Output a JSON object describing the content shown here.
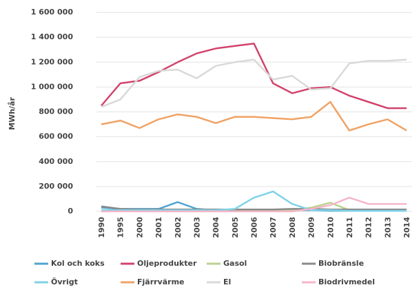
{
  "chart_data": {
    "type": "line",
    "y_label": "MWh/år",
    "categories": [
      "1990",
      "1995",
      "2000",
      "2001",
      "2002",
      "2003",
      "2004",
      "2005",
      "2006",
      "2007",
      "2008",
      "2009",
      "2010",
      "2011",
      "2012",
      "2013",
      "2014"
    ],
    "ylim": [
      0,
      1600000
    ],
    "yticks": [
      0,
      {
        "value": 200000,
        "label": "200 000"
      },
      {
        "value": 400000,
        "label": "400 000"
      },
      {
        "value": 600000,
        "label": "600 000"
      },
      {
        "value": 800000,
        "label": "800 000"
      },
      {
        "value": 1000000,
        "label": "1 000 000"
      },
      {
        "value": 1200000,
        "label": "1 200 000"
      },
      {
        "value": 1400000,
        "label": "1 400 000"
      },
      {
        "value": 1600000,
        "label": "1 600 000"
      }
    ],
    "grid": true,
    "series": [
      {
        "name": "Kol och koks",
        "color": "#4fa3d1",
        "values": [
          30000,
          20000,
          20000,
          20000,
          75000,
          20000,
          10000,
          15000,
          15000,
          15000,
          10000,
          10000,
          5000,
          5000,
          5000,
          5000,
          5000
        ]
      },
      {
        "name": "Oljeprodukter",
        "color": "#d2436b",
        "values": [
          850000,
          1030000,
          1050000,
          1120000,
          1200000,
          1270000,
          1310000,
          1330000,
          1350000,
          1030000,
          950000,
          990000,
          1000000,
          930000,
          880000,
          830000,
          830000
        ]
      },
      {
        "name": "Gasol",
        "color": "#b9d28c",
        "values": [
          10000,
          10000,
          10000,
          10000,
          10000,
          10000,
          10000,
          10000,
          10000,
          10000,
          10000,
          30000,
          70000,
          10000,
          10000,
          10000,
          10000
        ]
      },
      {
        "name": "Biobränsle",
        "color": "#8a8a8a",
        "values": [
          40000,
          20000,
          15000,
          15000,
          15000,
          15000,
          15000,
          15000,
          15000,
          15000,
          20000,
          20000,
          15000,
          15000,
          15000,
          15000,
          15000
        ]
      },
      {
        "name": "Övrigt",
        "color": "#7fd2e6",
        "values": [
          10000,
          10000,
          10000,
          10000,
          10000,
          10000,
          10000,
          20000,
          110000,
          160000,
          60000,
          10000,
          10000,
          5000,
          5000,
          5000,
          5000
        ]
      },
      {
        "name": "Fjärrvärme",
        "color": "#f0a264",
        "values": [
          700000,
          730000,
          670000,
          740000,
          780000,
          760000,
          710000,
          760000,
          760000,
          750000,
          740000,
          760000,
          880000,
          650000,
          700000,
          740000,
          650000
        ]
      },
      {
        "name": "El",
        "color": "#d9d9d9",
        "values": [
          840000,
          900000,
          1080000,
          1130000,
          1140000,
          1070000,
          1170000,
          1200000,
          1220000,
          1060000,
          1090000,
          980000,
          990000,
          1190000,
          1210000,
          1210000,
          1220000
        ]
      },
      {
        "name": "Biodrivmedel",
        "color": "#f4b6c8",
        "values": [
          0,
          0,
          0,
          0,
          0,
          0,
          0,
          0,
          0,
          0,
          0,
          20000,
          50000,
          110000,
          60000,
          60000,
          60000
        ]
      }
    ]
  }
}
